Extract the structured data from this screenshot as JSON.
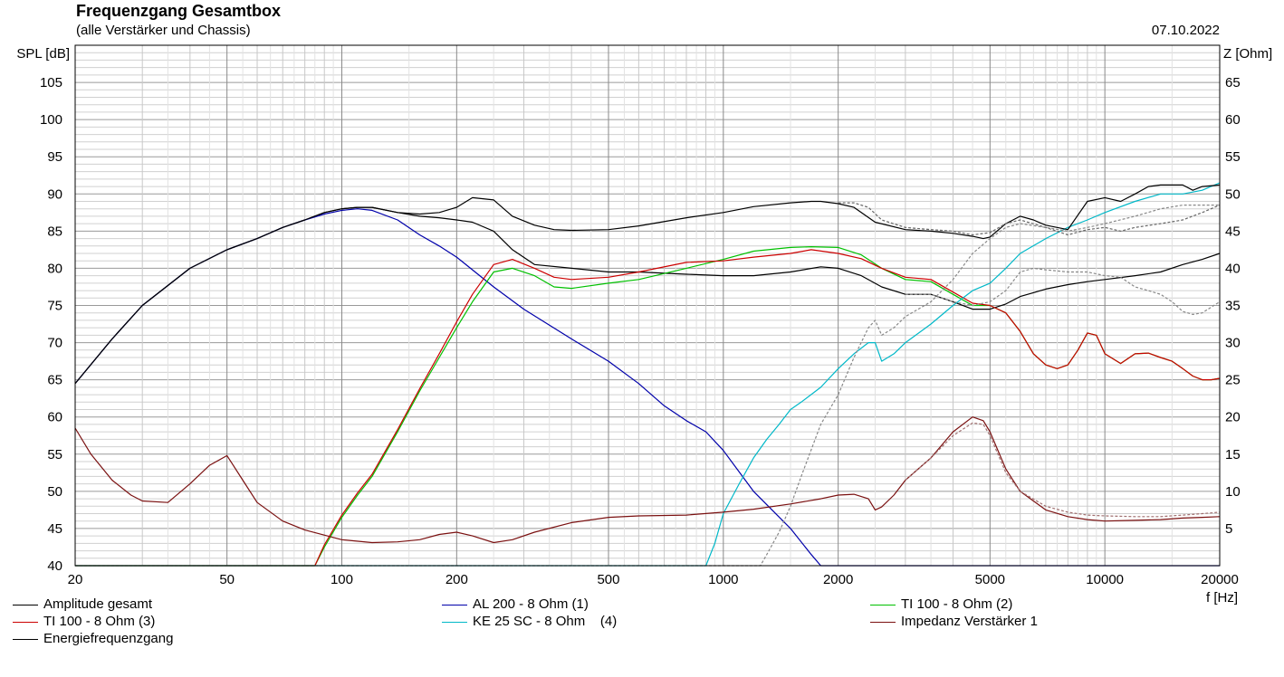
{
  "header": {
    "title": "Frequenzgang Gesamtbox",
    "subtitle": "(alle Verstärker und Chassis)",
    "date": "07.10.2022"
  },
  "chart_data": {
    "type": "line",
    "title": "Frequenzgang Gesamtbox",
    "subtitle": "(alle Verstärker und Chassis)",
    "xlabel": "f [Hz]",
    "ylabel_left": "SPL [dB]",
    "ylabel_right": "Z [Ohm]",
    "x_scale": "log",
    "xlim": [
      20,
      20000
    ],
    "ylim_left": [
      40,
      110
    ],
    "ylim_right": [
      0,
      70
    ],
    "x_ticks": [
      20,
      50,
      100,
      200,
      500,
      1000,
      2000,
      5000,
      10000,
      20000
    ],
    "y_ticks_left": [
      40,
      45,
      50,
      55,
      60,
      65,
      70,
      75,
      80,
      85,
      90,
      95,
      100,
      105
    ],
    "y_ticks_right": [
      5,
      10,
      15,
      20,
      25,
      30,
      35,
      40,
      45,
      50,
      55,
      60,
      65
    ],
    "grid": true,
    "legend_position": "bottom",
    "series": [
      {
        "name": "Amplitude gesamt",
        "color": "#000000",
        "axis": "left",
        "x": [
          20,
          25,
          30,
          40,
          50,
          60,
          70,
          80,
          90,
          100,
          110,
          120,
          140,
          160,
          180,
          200,
          220,
          250,
          280,
          320,
          400,
          500,
          600,
          800,
          1000,
          1200,
          1500,
          1800,
          2000,
          2300,
          2600,
          3000,
          3500,
          4000,
          4500,
          5000,
          5500,
          6000,
          7000,
          8000,
          9000,
          10000,
          12000,
          14000,
          16000,
          18000,
          20000
        ],
        "y": [
          64.5,
          70.5,
          75,
          80,
          82.5,
          84,
          85.5,
          86.5,
          87.5,
          88,
          88.2,
          88.2,
          87.5,
          87,
          86.8,
          86.5,
          86.2,
          85,
          82.5,
          80.5,
          80,
          79.5,
          79.5,
          79.2,
          79,
          79,
          79.5,
          80.2,
          80,
          79,
          77.5,
          76.5,
          76.5,
          75.5,
          74.5,
          74.5,
          75.2,
          76.2,
          77.2,
          77.8,
          78.2,
          78.5,
          79,
          79.5,
          80.5,
          81.2,
          82
        ]
      },
      {
        "name": "AL 200 - 8 Ohm (1)",
        "color": "#0000aa",
        "axis": "left",
        "x": [
          20,
          25,
          30,
          40,
          50,
          60,
          70,
          80,
          90,
          100,
          110,
          120,
          140,
          160,
          180,
          200,
          250,
          300,
          400,
          500,
          600,
          700,
          800,
          900,
          1000,
          1200,
          1500,
          1700,
          1800,
          2000,
          20000
        ],
        "y": [
          64.5,
          70.5,
          75,
          80,
          82.5,
          84,
          85.5,
          86.5,
          87.3,
          87.8,
          88,
          87.8,
          86.5,
          84.5,
          83,
          81.5,
          77.5,
          74.5,
          70.5,
          67.5,
          64.5,
          61.5,
          59.5,
          58,
          55.5,
          50,
          45,
          41.5,
          40,
          40,
          40
        ]
      },
      {
        "name": "TI 100 - 8 Ohm (2)",
        "color": "#00c000",
        "axis": "left",
        "x": [
          20,
          85,
          90,
          100,
          110,
          120,
          140,
          160,
          180,
          200,
          220,
          250,
          280,
          320,
          360,
          400,
          500,
          600,
          800,
          1000,
          1200,
          1500,
          1700,
          2000,
          2300,
          2600,
          3000,
          3500,
          4000,
          4500,
          5000,
          5500,
          6000,
          6500,
          7000,
          7500,
          8000,
          8500,
          9000,
          9500,
          10000,
          11000,
          12000,
          13000,
          14000,
          15000,
          16000,
          17000,
          18000,
          19000,
          20000
        ],
        "y": [
          40,
          40,
          42.5,
          46.5,
          49.5,
          52,
          58,
          63.5,
          68,
          72,
          75.5,
          79.5,
          80,
          79,
          77.5,
          77.3,
          78,
          78.5,
          80,
          81.2,
          82.3,
          82.8,
          82.9,
          82.8,
          81.8,
          80,
          78.5,
          78.2,
          76.5,
          75,
          75,
          74,
          71.5,
          68.5,
          67,
          66.5,
          67,
          69,
          71.3,
          71,
          68.5,
          67.2,
          68.5,
          68.6,
          68,
          67.5,
          66.5,
          65.5,
          65,
          65,
          65.2
        ]
      },
      {
        "name": "TI 100 - 8 Ohm (3)",
        "color": "#cc0000",
        "axis": "left",
        "x": [
          20,
          85,
          90,
          100,
          110,
          120,
          140,
          160,
          180,
          200,
          220,
          250,
          280,
          320,
          360,
          400,
          500,
          600,
          800,
          1000,
          1200,
          1500,
          1700,
          2000,
          2300,
          2600,
          3000,
          3500,
          4000,
          4500,
          5000,
          5500,
          6000,
          6500,
          7000,
          7500,
          8000,
          8500,
          9000,
          9500,
          10000,
          11000,
          12000,
          13000,
          14000,
          15000,
          16000,
          17000,
          18000,
          19000,
          20000
        ],
        "y": [
          40,
          40,
          42.8,
          46.8,
          49.8,
          52.3,
          58.3,
          63.8,
          68.5,
          72.8,
          76.5,
          80.5,
          81.2,
          80,
          78.8,
          78.5,
          78.8,
          79.5,
          80.8,
          81,
          81.5,
          82,
          82.5,
          82,
          81.3,
          80,
          78.8,
          78.5,
          76.8,
          75.3,
          75,
          74,
          71.5,
          68.5,
          67,
          66.5,
          67,
          69,
          71.3,
          71,
          68.5,
          67.2,
          68.5,
          68.6,
          68,
          67.5,
          66.5,
          65.5,
          65,
          65,
          65.2
        ]
      },
      {
        "name": "KE 25 SC - 8 Ohm    (4)",
        "color": "#00b8c8",
        "axis": "left",
        "x": [
          20,
          900,
          950,
          1000,
          1100,
          1200,
          1300,
          1400,
          1500,
          1600,
          1800,
          2000,
          2200,
          2400,
          2500,
          2600,
          2800,
          3000,
          3500,
          4000,
          4500,
          5000,
          5500,
          6000,
          7000,
          8000,
          9000,
          10000,
          12000,
          14000,
          16000,
          18000,
          20000
        ],
        "y": [
          40,
          40,
          43,
          47,
          51,
          54.5,
          57,
          59,
          61,
          62,
          64,
          66.5,
          68.5,
          70,
          70,
          67.5,
          68.5,
          70,
          72.5,
          75,
          77,
          78,
          80,
          82,
          84,
          85.5,
          86.5,
          87.5,
          89,
          90,
          90,
          90.5,
          91.5
        ]
      },
      {
        "name": "Impedanz Verstärker 1",
        "color": "#7a1010",
        "axis": "right",
        "x": [
          20,
          22,
          25,
          28,
          30,
          35,
          40,
          45,
          50,
          55,
          60,
          70,
          80,
          100,
          120,
          140,
          160,
          180,
          200,
          220,
          250,
          280,
          320,
          400,
          500,
          600,
          800,
          1000,
          1200,
          1500,
          1800,
          2000,
          2200,
          2400,
          2500,
          2600,
          2800,
          3000,
          3500,
          4000,
          4500,
          4800,
          5000,
          5500,
          6000,
          7000,
          8000,
          9000,
          10000,
          12000,
          14000,
          16000,
          18000,
          20000
        ],
        "y": [
          18.5,
          15,
          11.5,
          9.5,
          8.7,
          8.5,
          11,
          13.5,
          14.8,
          11.5,
          8.5,
          6,
          4.8,
          3.5,
          3.1,
          3.2,
          3.5,
          4.2,
          4.5,
          4,
          3.1,
          3.5,
          4.5,
          5.8,
          6.5,
          6.7,
          6.8,
          7.2,
          7.6,
          8.3,
          9,
          9.5,
          9.6,
          9,
          7.5,
          7.9,
          9.5,
          11.5,
          14.5,
          18,
          20,
          19.5,
          18,
          13,
          10,
          7.5,
          6.6,
          6.2,
          6.0,
          6.1,
          6.2,
          6.4,
          6.5,
          6.6
        ]
      },
      {
        "name": "Energiefrequenzgang",
        "color": "#000000",
        "axis": "left",
        "x": [
          20,
          25,
          30,
          40,
          50,
          60,
          70,
          80,
          90,
          100,
          110,
          120,
          140,
          160,
          180,
          200,
          220,
          250,
          280,
          320,
          360,
          400,
          500,
          600,
          800,
          1000,
          1200,
          1500,
          1700,
          1800,
          2000,
          2200,
          2500,
          3000,
          3500,
          4000,
          4500,
          4800,
          5000,
          5500,
          6000,
          6500,
          7000,
          8000,
          9000,
          10000,
          11000,
          12000,
          13000,
          14000,
          16000,
          17000,
          18000,
          20000
        ],
        "y": [
          64.5,
          70.5,
          75,
          80,
          82.5,
          84,
          85.5,
          86.5,
          87.5,
          88,
          88.2,
          88.2,
          87.5,
          87.3,
          87.5,
          88.2,
          89.5,
          89.2,
          87,
          85.8,
          85.2,
          85.1,
          85.2,
          85.7,
          86.8,
          87.5,
          88.3,
          88.8,
          89,
          89,
          88.7,
          88.2,
          86.2,
          85.2,
          85,
          84.7,
          84.3,
          84,
          84.2,
          86,
          87,
          86.5,
          85.8,
          85.2,
          89,
          89.5,
          89,
          90,
          91,
          91.2,
          91.2,
          90.5,
          91,
          91.2
        ]
      },
      {
        "name": "",
        "color": "#888888",
        "axis": "left",
        "dashed": true,
        "x": [
          20,
          1250,
          1300,
          1400,
          1500,
          1600,
          1800,
          2000,
          2200,
          2400,
          2500,
          2600,
          2800,
          3000,
          3500,
          4000,
          4500,
          5000,
          5500,
          6000,
          7000,
          8000,
          9000,
          10000,
          12000,
          14000,
          16000,
          18000,
          20000
        ],
        "y": [
          40,
          40,
          41.5,
          44.5,
          48,
          52,
          59,
          63,
          68,
          72,
          73,
          71,
          72,
          73.5,
          75.5,
          78.5,
          82,
          84,
          85.5,
          86,
          85.5,
          85,
          85.5,
          86,
          87,
          88,
          88.5,
          88.5,
          88.5
        ]
      },
      {
        "name": "",
        "color": "#666666",
        "axis": "left",
        "dashed": true,
        "x": [
          2000,
          2200,
          2400,
          2600,
          3000,
          3500,
          4000,
          4500,
          5000,
          5500,
          6000,
          7000,
          8000,
          9000,
          10000,
          11000,
          12000,
          14000,
          16000,
          18000,
          20000
        ],
        "y": [
          88.8,
          88.8,
          88.2,
          86.5,
          85.5,
          85.2,
          85,
          84.5,
          84.8,
          86,
          86.5,
          85.5,
          84.5,
          85.2,
          85.5,
          85,
          85.5,
          86,
          86.5,
          87.5,
          88.5
        ]
      },
      {
        "name": "",
        "color": "#888888",
        "axis": "left",
        "dashed": true,
        "x": [
          3000,
          3500,
          4000,
          4500,
          5000,
          5500,
          6000,
          6500,
          7000,
          8000,
          9000,
          10000,
          11000,
          12000,
          13000,
          14000,
          15000,
          16000,
          17000,
          18000,
          20000
        ],
        "y": [
          76.5,
          76.5,
          75.5,
          75,
          75.5,
          77,
          79.5,
          80,
          79.8,
          79.5,
          79.5,
          79,
          78.8,
          77.5,
          77,
          76.5,
          75.5,
          74.2,
          73.8,
          74,
          75.5
        ]
      },
      {
        "name": "",
        "color": "#a07070",
        "axis": "right",
        "dashed": true,
        "x": [
          3000,
          3500,
          4000,
          4500,
          4800,
          5000,
          5500,
          6000,
          7000,
          8000,
          9000,
          10000,
          12000,
          14000,
          16000,
          18000,
          20000
        ],
        "y": [
          11.5,
          14.5,
          17.5,
          19.2,
          19,
          17.5,
          12.5,
          10,
          8,
          7.2,
          6.8,
          6.7,
          6.6,
          6.6,
          6.8,
          7.0,
          7.2
        ]
      }
    ],
    "legend": [
      {
        "label": "Amplitude gesamt",
        "color": "#000000",
        "pos": "row1-col1"
      },
      {
        "label": "AL 200 - 8 Ohm (1)",
        "color": "#0000aa",
        "pos": "row1-col2"
      },
      {
        "label": "TI 100 - 8 Ohm (2)",
        "color": "#00c000",
        "pos": "row1-col3"
      },
      {
        "label": "TI 100 - 8 Ohm (3)",
        "color": "#cc0000",
        "pos": "row2-col1"
      },
      {
        "label": "KE 25 SC - 8 Ohm    (4)",
        "color": "#00b8c8",
        "pos": "row2-col2"
      },
      {
        "label": "Impedanz Verstärker 1",
        "color": "#7a1010",
        "pos": "row2-col3"
      },
      {
        "label": "Energiefrequenzgang",
        "color": "#000000",
        "pos": "row3-col1"
      }
    ]
  }
}
